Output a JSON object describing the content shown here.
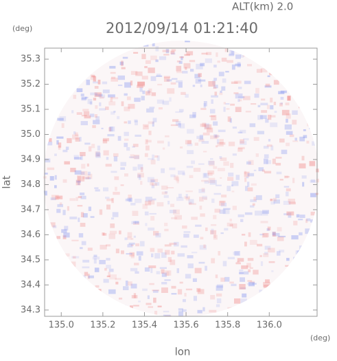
{
  "chart_data": {
    "type": "image",
    "title": "2012/09/14 01:21:40",
    "subtitle": "ALT(km) 2.0",
    "x_label": "lon",
    "y_label": "lat",
    "x_unit": "(deg)",
    "y_unit": "(deg)",
    "xlim": [
      134.92,
      136.23
    ],
    "ylim": [
      34.275,
      35.344
    ],
    "xticks": [
      {
        "value": 135,
        "label": "135.0"
      },
      135.2,
      135.4,
      135.6,
      135.8,
      {
        "value": 136,
        "label": "136.0"
      }
    ],
    "yticks": [
      34.3,
      34.4,
      34.5,
      34.6,
      34.7,
      34.8,
      34.9,
      {
        "value": 35,
        "label": "35.0"
      },
      35.1,
      35.2,
      35.3
    ]
  }
}
